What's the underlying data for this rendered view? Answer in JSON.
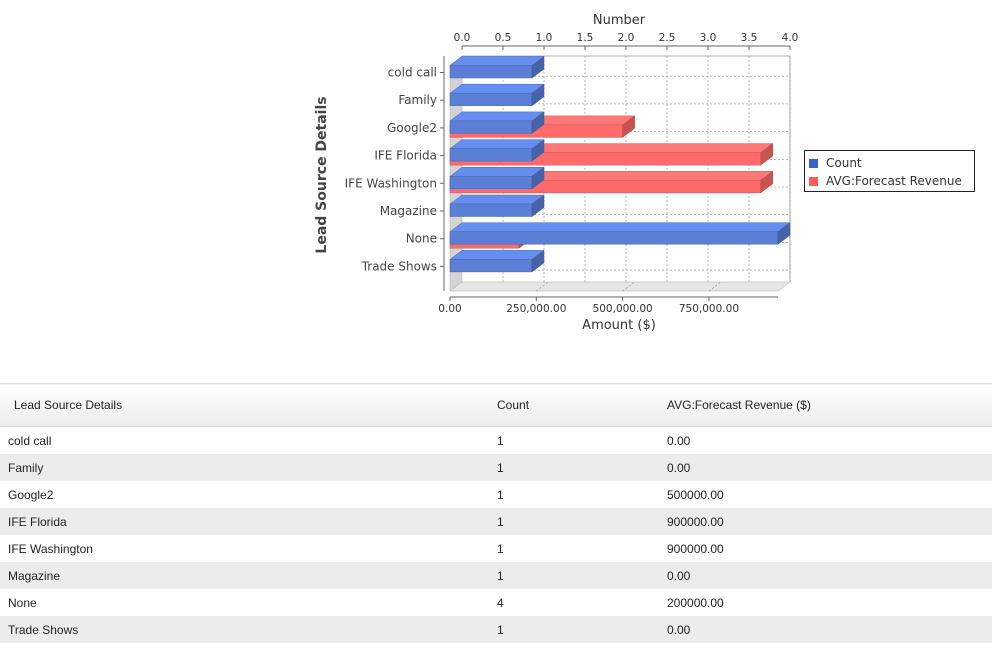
{
  "chart_data": {
    "type": "bar",
    "orientation": "horizontal",
    "style": "3d",
    "xlabel_top": "Number",
    "xlabel_bottom": "Amount ($)",
    "ylabel": "Lead Source Details",
    "categories": [
      "cold call",
      "Family",
      "Google2",
      "IFE Florida",
      "IFE Washington",
      "Magazine",
      "None",
      "Trade Shows"
    ],
    "series": [
      {
        "name": "Count",
        "axis": "top",
        "color": "#5b7fd6",
        "values": [
          1,
          1,
          1,
          1,
          1,
          1,
          4,
          1
        ]
      },
      {
        "name": "AVG:Forecast Revenue",
        "axis": "bottom",
        "color": "#ff6b6b",
        "values": [
          0,
          0,
          500000,
          900000,
          900000,
          0,
          200000,
          0
        ]
      }
    ],
    "top_axis": {
      "range": [
        0,
        4.0
      ],
      "ticks": [
        "0.0",
        "0.5",
        "1.0",
        "1.5",
        "2.0",
        "2.5",
        "3.0",
        "3.5",
        "4.0"
      ]
    },
    "bottom_axis": {
      "range": [
        0,
        1000000
      ],
      "tick_values": [
        0,
        250000,
        500000,
        750000
      ],
      "ticks": [
        "0.00",
        "250,000.00",
        "500,000.00",
        "750,000.00"
      ]
    },
    "grid": true,
    "legend_position": "right"
  },
  "table": {
    "headers": [
      "Lead Source Details",
      "Count",
      "AVG:Forecast Revenue ($)"
    ],
    "rows": [
      [
        "cold call",
        "1",
        "0.00"
      ],
      [
        "Family",
        "1",
        "0.00"
      ],
      [
        "Google2",
        "1",
        "500000.00"
      ],
      [
        "IFE Florida",
        "1",
        "900000.00"
      ],
      [
        "IFE Washington",
        "1",
        "900000.00"
      ],
      [
        "Magazine",
        "1",
        "0.00"
      ],
      [
        "None",
        "4",
        "200000.00"
      ],
      [
        "Trade Shows",
        "1",
        "0.00"
      ]
    ]
  }
}
